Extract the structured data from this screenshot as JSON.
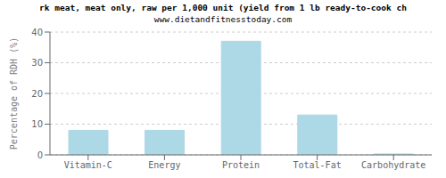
{
  "chart_data": {
    "type": "bar",
    "title": "rk meat, meat only, raw per 1,000 unit (yield from 1 lb ready-to-cook ch",
    "subtitle": "www.dietandfitnesstoday.com",
    "categories": [
      "Vitamin-C",
      "Energy",
      "Protein",
      "Total-Fat",
      "Carbohydrate"
    ],
    "values": [
      8,
      8,
      37,
      13,
      0.3
    ],
    "color": "#add8e6",
    "ylabel": "Percentage of RDH (%)",
    "ylim": [
      0,
      40
    ],
    "yticks": [
      0,
      10,
      20,
      30,
      40
    ],
    "grid": true
  }
}
